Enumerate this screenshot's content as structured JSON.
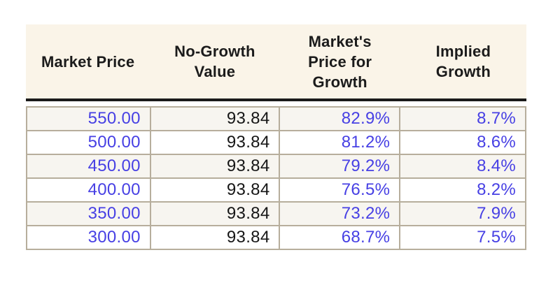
{
  "colors": {
    "page_bg": "#ffffff",
    "header_bg": "#faf4e8",
    "header_text": "#1b1b1b",
    "header_rule": "#1a1a1a",
    "cell_border": "#b7ae9c",
    "row_alt_bg": "#f7f5f0",
    "row_bg": "#ffffff",
    "number_blue": "#4740e4",
    "number_black": "#161616"
  },
  "table": {
    "headers": [
      {
        "label": "Market Price"
      },
      {
        "label": "No-Growth\nValue"
      },
      {
        "label": "Market's\nPrice for\nGrowth"
      },
      {
        "label": "Implied\nGrowth"
      }
    ],
    "rows": [
      [
        "550.00",
        "93.84",
        "82.9%",
        "8.7%"
      ],
      [
        "500.00",
        "93.84",
        "81.2%",
        "8.6%"
      ],
      [
        "450.00",
        "93.84",
        "79.2%",
        "8.4%"
      ],
      [
        "400.00",
        "93.84",
        "76.5%",
        "8.2%"
      ],
      [
        "350.00",
        "93.84",
        "73.2%",
        "7.9%"
      ],
      [
        "300.00",
        "93.84",
        "68.7%",
        "7.5%"
      ]
    ]
  },
  "chart_data": {
    "type": "table",
    "title": "",
    "columns": [
      "Market Price",
      "No-Growth Value",
      "Market's Price for Growth",
      "Implied Growth"
    ],
    "rows": [
      {
        "market_price": 550.0,
        "no_growth_value": 93.84,
        "markets_price_for_growth_pct": 82.9,
        "implied_growth_pct": 8.7
      },
      {
        "market_price": 500.0,
        "no_growth_value": 93.84,
        "markets_price_for_growth_pct": 81.2,
        "implied_growth_pct": 8.6
      },
      {
        "market_price": 450.0,
        "no_growth_value": 93.84,
        "markets_price_for_growth_pct": 79.2,
        "implied_growth_pct": 8.4
      },
      {
        "market_price": 400.0,
        "no_growth_value": 93.84,
        "markets_price_for_growth_pct": 76.5,
        "implied_growth_pct": 8.2
      },
      {
        "market_price": 350.0,
        "no_growth_value": 93.84,
        "markets_price_for_growth_pct": 73.2,
        "implied_growth_pct": 7.9
      },
      {
        "market_price": 300.0,
        "no_growth_value": 93.84,
        "markets_price_for_growth_pct": 68.7,
        "implied_growth_pct": 7.5
      }
    ]
  }
}
